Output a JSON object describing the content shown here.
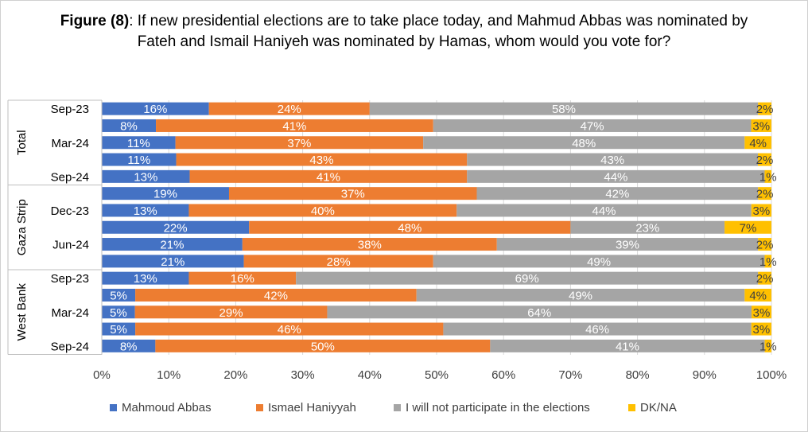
{
  "title": {
    "bold": "Figure (8)",
    "rest": ": If new presidential elections are to take place today, and Mahmud Abbas was nominated by Fateh and Ismail Haniyeh was nominated by Hamas, whom would you vote for?"
  },
  "colors": {
    "Mahmoud Abbas": "#4472c4",
    "Ismael Haniyyah": "#ed7d31",
    "I will not participate in the elections": "#a5a5a5",
    "DK/NA": "#ffc000"
  },
  "chart_data": {
    "type": "bar",
    "orientation": "horizontal",
    "stacked": "percent",
    "xlim": [
      0,
      100
    ],
    "x_ticks": [
      "0%",
      "10%",
      "20%",
      "30%",
      "40%",
      "50%",
      "60%",
      "70%",
      "80%",
      "90%",
      "100%"
    ],
    "groups": [
      {
        "name": "Total",
        "rows": [
          {
            "label": "Sep-23",
            "values": [
              16,
              24,
              58,
              2
            ]
          },
          {
            "label": "",
            "values": [
              8,
              41,
              47,
              3
            ]
          },
          {
            "label": "Mar-24",
            "values": [
              11,
              37,
              48,
              4
            ]
          },
          {
            "label": "",
            "values": [
              11,
              43,
              43,
              2
            ]
          },
          {
            "label": "Sep-24",
            "values": [
              13,
              41,
              44,
              1
            ]
          }
        ]
      },
      {
        "name": "Gaza Strip",
        "rows": [
          {
            "label": "",
            "values": [
              19,
              37,
              42,
              2
            ]
          },
          {
            "label": "Dec-23",
            "values": [
              13,
              40,
              44,
              3
            ]
          },
          {
            "label": "",
            "values": [
              22,
              48,
              23,
              7
            ]
          },
          {
            "label": "Jun-24",
            "values": [
              21,
              38,
              39,
              2
            ]
          },
          {
            "label": "",
            "values": [
              21,
              28,
              49,
              1
            ]
          }
        ]
      },
      {
        "name": "West Bank",
        "rows": [
          {
            "label": "Sep-23",
            "values": [
              13,
              16,
              69,
              2
            ]
          },
          {
            "label": "",
            "values": [
              5,
              42,
              49,
              4
            ]
          },
          {
            "label": "Mar-24",
            "values": [
              5,
              29,
              64,
              3
            ]
          },
          {
            "label": "",
            "values": [
              5,
              46,
              46,
              3
            ]
          },
          {
            "label": "Sep-24",
            "values": [
              8,
              50,
              41,
              1
            ]
          }
        ]
      }
    ],
    "series": [
      {
        "name": "Mahmoud Abbas"
      },
      {
        "name": "Ismael Haniyyah"
      },
      {
        "name": "I will not participate in the elections"
      },
      {
        "name": "DK/NA"
      }
    ],
    "legend": "bottom",
    "grid": true
  }
}
